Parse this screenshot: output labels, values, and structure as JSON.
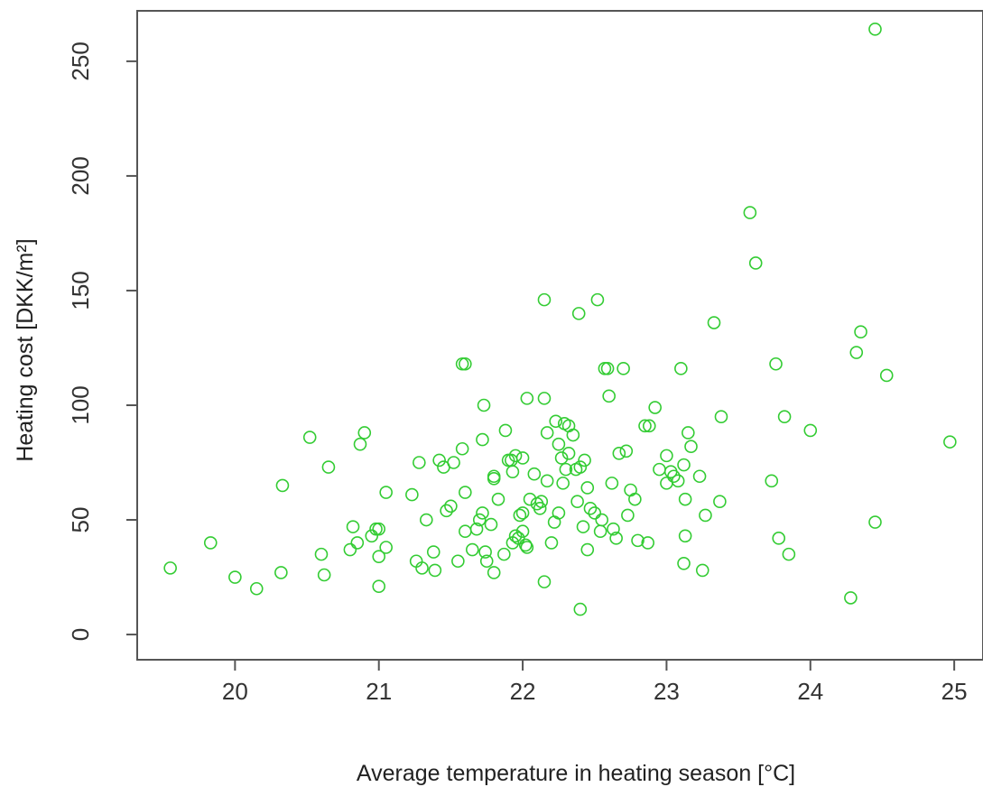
{
  "chart_data": {
    "type": "scatter",
    "xlabel": "Average temperature in heating season [°C]",
    "ylabel": "Heating cost [DKK/m²]",
    "xlim": [
      19.32,
      25.2
    ],
    "ylim": [
      -11,
      272
    ],
    "x_ticks": [
      20,
      21,
      22,
      23,
      24,
      25
    ],
    "y_ticks": [
      0,
      50,
      100,
      150,
      200,
      250
    ],
    "point_color": "#33cc33",
    "marker": "open-circle",
    "grid": false,
    "legend": "none",
    "points": [
      [
        19.55,
        29
      ],
      [
        19.83,
        40
      ],
      [
        20.0,
        25
      ],
      [
        20.15,
        20
      ],
      [
        20.32,
        27
      ],
      [
        20.33,
        65
      ],
      [
        20.52,
        86
      ],
      [
        20.6,
        35
      ],
      [
        20.62,
        26
      ],
      [
        20.65,
        73
      ],
      [
        20.8,
        37
      ],
      [
        20.82,
        47
      ],
      [
        20.85,
        40
      ],
      [
        20.87,
        83
      ],
      [
        20.9,
        88
      ],
      [
        20.95,
        43
      ],
      [
        20.98,
        46
      ],
      [
        21.0,
        46
      ],
      [
        21.0,
        34
      ],
      [
        21.0,
        21
      ],
      [
        21.05,
        38
      ],
      [
        21.05,
        62
      ],
      [
        21.23,
        61
      ],
      [
        21.26,
        32
      ],
      [
        21.28,
        75
      ],
      [
        21.3,
        29
      ],
      [
        21.33,
        50
      ],
      [
        21.38,
        36
      ],
      [
        21.39,
        28
      ],
      [
        21.42,
        76
      ],
      [
        21.45,
        73
      ],
      [
        21.47,
        54
      ],
      [
        21.5,
        56
      ],
      [
        21.52,
        75
      ],
      [
        21.55,
        32
      ],
      [
        21.58,
        81
      ],
      [
        21.58,
        118
      ],
      [
        21.6,
        45
      ],
      [
        21.6,
        62
      ],
      [
        21.6,
        118
      ],
      [
        21.65,
        37
      ],
      [
        21.68,
        46
      ],
      [
        21.7,
        50
      ],
      [
        21.72,
        53
      ],
      [
        21.72,
        85
      ],
      [
        21.73,
        100
      ],
      [
        21.74,
        36
      ],
      [
        21.75,
        32
      ],
      [
        21.78,
        48
      ],
      [
        21.8,
        68
      ],
      [
        21.8,
        69
      ],
      [
        21.8,
        27
      ],
      [
        21.83,
        59
      ],
      [
        21.87,
        35
      ],
      [
        21.88,
        89
      ],
      [
        21.9,
        76
      ],
      [
        21.92,
        76
      ],
      [
        21.93,
        40
      ],
      [
        21.93,
        71
      ],
      [
        21.95,
        78
      ],
      [
        21.95,
        43
      ],
      [
        21.97,
        42
      ],
      [
        21.98,
        52
      ],
      [
        22.0,
        77
      ],
      [
        22.0,
        45
      ],
      [
        22.0,
        53
      ],
      [
        22.02,
        39
      ],
      [
        22.03,
        38
      ],
      [
        22.03,
        103
      ],
      [
        22.05,
        59
      ],
      [
        22.08,
        70
      ],
      [
        22.1,
        57
      ],
      [
        22.12,
        55
      ],
      [
        22.13,
        58
      ],
      [
        22.15,
        103
      ],
      [
        22.15,
        23
      ],
      [
        22.15,
        146
      ],
      [
        22.17,
        88
      ],
      [
        22.17,
        67
      ],
      [
        22.2,
        40
      ],
      [
        22.22,
        49
      ],
      [
        22.23,
        93
      ],
      [
        22.25,
        83
      ],
      [
        22.25,
        53
      ],
      [
        22.27,
        77
      ],
      [
        22.28,
        66
      ],
      [
        22.29,
        92
      ],
      [
        22.3,
        72
      ],
      [
        22.32,
        91
      ],
      [
        22.32,
        79
      ],
      [
        22.35,
        87
      ],
      [
        22.37,
        72
      ],
      [
        22.38,
        58
      ],
      [
        22.39,
        140
      ],
      [
        22.4,
        73
      ],
      [
        22.4,
        11
      ],
      [
        22.42,
        47
      ],
      [
        22.43,
        76
      ],
      [
        22.45,
        64
      ],
      [
        22.45,
        37
      ],
      [
        22.47,
        55
      ],
      [
        22.5,
        53
      ],
      [
        22.52,
        146
      ],
      [
        22.54,
        45
      ],
      [
        22.55,
        50
      ],
      [
        22.57,
        116
      ],
      [
        22.59,
        116
      ],
      [
        22.6,
        104
      ],
      [
        22.62,
        66
      ],
      [
        22.63,
        46
      ],
      [
        22.65,
        42
      ],
      [
        22.67,
        79
      ],
      [
        22.7,
        116
      ],
      [
        22.72,
        80
      ],
      [
        22.73,
        52
      ],
      [
        22.75,
        63
      ],
      [
        22.78,
        59
      ],
      [
        22.8,
        41
      ],
      [
        22.85,
        91
      ],
      [
        22.87,
        40
      ],
      [
        22.88,
        91
      ],
      [
        22.92,
        99
      ],
      [
        22.95,
        72
      ],
      [
        23.0,
        66
      ],
      [
        23.0,
        78
      ],
      [
        23.03,
        71
      ],
      [
        23.05,
        69
      ],
      [
        23.08,
        67
      ],
      [
        23.1,
        116
      ],
      [
        23.12,
        31
      ],
      [
        23.12,
        74
      ],
      [
        23.13,
        43
      ],
      [
        23.13,
        59
      ],
      [
        23.15,
        88
      ],
      [
        23.17,
        82
      ],
      [
        23.23,
        69
      ],
      [
        23.25,
        28
      ],
      [
        23.27,
        52
      ],
      [
        23.33,
        136
      ],
      [
        23.37,
        58
      ],
      [
        23.38,
        95
      ],
      [
        23.58,
        184
      ],
      [
        23.62,
        162
      ],
      [
        23.73,
        67
      ],
      [
        23.76,
        118
      ],
      [
        23.78,
        42
      ],
      [
        23.82,
        95
      ],
      [
        23.85,
        35
      ],
      [
        24.0,
        89
      ],
      [
        24.28,
        16
      ],
      [
        24.32,
        123
      ],
      [
        24.35,
        132
      ],
      [
        24.45,
        264
      ],
      [
        24.45,
        49
      ],
      [
        24.53,
        113
      ],
      [
        24.97,
        84
      ]
    ]
  }
}
